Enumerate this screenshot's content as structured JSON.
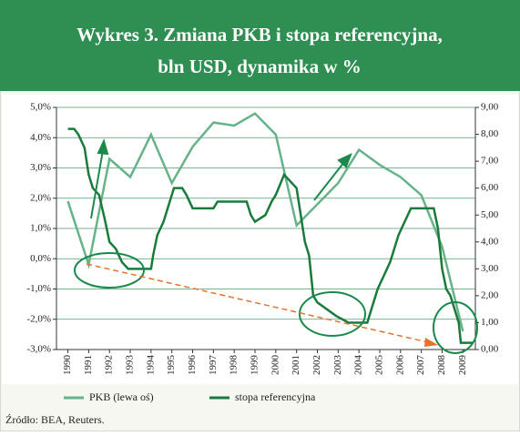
{
  "chart_data": {
    "type": "line",
    "title_line1": "Wykres 3. Zmiana PKB i stopa referencyjna,",
    "title_line2": "bln USD, dynamika w %",
    "source": "Źródło: BEA, Reuters.",
    "xlim": [
      1989.45,
      2009.6
    ],
    "xticks": [
      1990,
      1991,
      1992,
      1993,
      1994,
      1995,
      1996,
      1997,
      1998,
      1999,
      2000,
      2001,
      2002,
      2003,
      2004,
      2005,
      2006,
      2007,
      2008,
      2009
    ],
    "ylim": [
      -3,
      5
    ],
    "yticks": [
      {
        "value": 5,
        "label": "5,0%"
      },
      {
        "value": 4,
        "label": "4,0%"
      },
      {
        "value": 3,
        "label": "3,0%"
      },
      {
        "value": 2,
        "label": "2,0%"
      },
      {
        "value": 1,
        "label": "1,0%"
      },
      {
        "value": 0,
        "label": "0,0%"
      },
      {
        "value": -1,
        "label": "-1,0%"
      },
      {
        "value": -2,
        "label": "-2,0%"
      },
      {
        "value": -3,
        "label": "-3,0%"
      }
    ],
    "y2lim": [
      0,
      9
    ],
    "y2ticks": [
      {
        "value": 9,
        "label": "9,00"
      },
      {
        "value": 8,
        "label": "8,00"
      },
      {
        "value": 7,
        "label": "7,00"
      },
      {
        "value": 6,
        "label": "6,00"
      },
      {
        "value": 5,
        "label": "5,00"
      },
      {
        "value": 4,
        "label": "4,00"
      },
      {
        "value": 3,
        "label": "3,00"
      },
      {
        "value": 2,
        "label": "2,00"
      },
      {
        "value": 1,
        "label": "1,00"
      },
      {
        "value": 0,
        "label": "0,00"
      }
    ],
    "grid": true,
    "legend": "bottom",
    "series": [
      {
        "name": "PKB (lewa oś)",
        "color": "#66b38a",
        "axis": "y",
        "x": [
          1990,
          1991,
          1992,
          1993,
          1994,
          1995,
          1996,
          1997,
          1998,
          1999,
          2000,
          2001,
          2002,
          2003,
          2004,
          2005,
          2006,
          2007,
          2008,
          2009
        ],
        "values": [
          1.9,
          -0.2,
          3.3,
          2.7,
          4.1,
          2.5,
          3.7,
          4.5,
          4.4,
          4.8,
          4.1,
          1.1,
          1.8,
          2.5,
          3.6,
          3.1,
          2.7,
          2.1,
          0.4,
          -2.4
        ]
      },
      {
        "name": "stopa referencyjna",
        "color": "#1a7a3c",
        "axis": "y2",
        "x": [
          1990.0,
          1990.3,
          1990.5,
          1990.8,
          1991.0,
          1991.2,
          1991.5,
          1991.8,
          1992.0,
          1992.3,
          1992.6,
          1992.9,
          1993.5,
          1994.0,
          1994.1,
          1994.3,
          1994.6,
          1994.9,
          1995.1,
          1995.5,
          1995.7,
          1996.0,
          1997.0,
          1997.2,
          1998.6,
          1998.8,
          1999.0,
          1999.5,
          1999.8,
          2000.0,
          2000.4,
          2001.0,
          2001.2,
          2001.4,
          2001.6,
          2001.8,
          2002.0,
          2002.9,
          2003.5,
          2004.4,
          2004.6,
          2004.9,
          2005.2,
          2005.5,
          2005.9,
          2006.2,
          2006.5,
          2007.6,
          2007.8,
          2008.0,
          2008.2,
          2008.4,
          2008.8,
          2008.9,
          2009.5
        ],
        "values": [
          8.2,
          8.2,
          8.0,
          7.5,
          6.5,
          6.0,
          5.75,
          4.75,
          4.0,
          3.75,
          3.25,
          3.0,
          3.0,
          3.0,
          3.5,
          4.25,
          4.75,
          5.5,
          6.0,
          6.0,
          5.75,
          5.25,
          5.25,
          5.5,
          5.5,
          5.0,
          4.75,
          5.0,
          5.5,
          5.75,
          6.5,
          6.0,
          5.0,
          4.0,
          3.5,
          2.0,
          1.75,
          1.25,
          1.0,
          1.0,
          1.5,
          2.25,
          2.75,
          3.25,
          4.25,
          4.75,
          5.25,
          5.25,
          4.5,
          3.0,
          2.25,
          2.0,
          1.0,
          0.25,
          0.25
        ]
      }
    ]
  }
}
